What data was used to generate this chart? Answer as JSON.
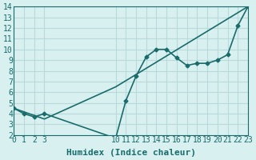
{
  "xlabel": "Humidex (Indice chaleur)",
  "bg_color": "#d8f0f0",
  "grid_color": "#b8dada",
  "line_color": "#1a6b6b",
  "xlim": [
    0,
    23
  ],
  "ylim": [
    2,
    14
  ],
  "xticks": [
    0,
    1,
    2,
    3,
    10,
    11,
    12,
    13,
    14,
    15,
    16,
    17,
    18,
    19,
    20,
    21,
    22,
    23
  ],
  "yticks": [
    2,
    3,
    4,
    5,
    6,
    7,
    8,
    9,
    10,
    11,
    12,
    13,
    14
  ],
  "line1_x": [
    0,
    1,
    2,
    3,
    10,
    11,
    12,
    13,
    14,
    15,
    16,
    17,
    18,
    19,
    20,
    21,
    22,
    23
  ],
  "line1_y": [
    4.5,
    4.0,
    3.7,
    4.0,
    1.7,
    5.2,
    7.5,
    9.3,
    10.0,
    10.0,
    9.2,
    8.5,
    8.7,
    8.7,
    9.0,
    9.5,
    12.2,
    14.0
  ],
  "line2_x": [
    0,
    3,
    10,
    23
  ],
  "line2_y": [
    4.5,
    3.5,
    6.5,
    14.0
  ],
  "font_color": "#1a6b6b",
  "font_size": 7
}
